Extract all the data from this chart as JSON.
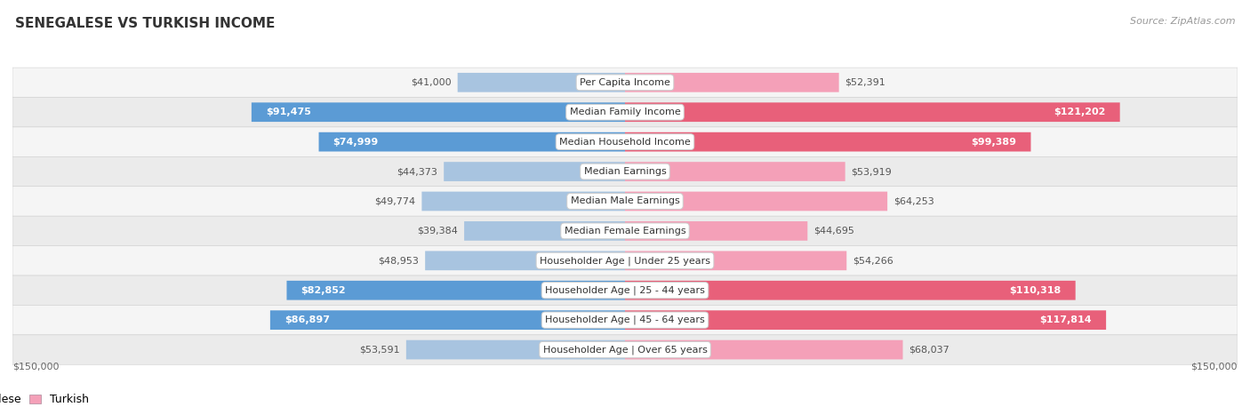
{
  "title": "SENEGALESE VS TURKISH INCOME",
  "source": "Source: ZipAtlas.com",
  "max_val": 150000,
  "categories": [
    "Per Capita Income",
    "Median Family Income",
    "Median Household Income",
    "Median Earnings",
    "Median Male Earnings",
    "Median Female Earnings",
    "Householder Age | Under 25 years",
    "Householder Age | 25 - 44 years",
    "Householder Age | 45 - 64 years",
    "Householder Age | Over 65 years"
  ],
  "senegalese": [
    41000,
    91475,
    74999,
    44373,
    49774,
    39384,
    48953,
    82852,
    86897,
    53591
  ],
  "turkish": [
    52391,
    121202,
    99389,
    53919,
    64253,
    44695,
    54266,
    110318,
    117814,
    68037
  ],
  "senegalese_labels": [
    "$41,000",
    "$91,475",
    "$74,999",
    "$44,373",
    "$49,774",
    "$39,384",
    "$48,953",
    "$82,852",
    "$86,897",
    "$53,591"
  ],
  "turkish_labels": [
    "$52,391",
    "$121,202",
    "$99,389",
    "$53,919",
    "$64,253",
    "$44,695",
    "$54,266",
    "$110,318",
    "$117,814",
    "$68,037"
  ],
  "color_senegalese_light": "#a8c4e0",
  "color_senegalese_dark": "#5b9bd5",
  "color_turkish_light": "#f4a0b8",
  "color_turkish_dark": "#e8607a",
  "row_bg_even": "#f5f5f5",
  "row_bg_odd": "#ebebeb",
  "title_fontsize": 11,
  "source_fontsize": 8,
  "bar_fontsize": 8,
  "cat_fontsize": 8,
  "axis_fontsize": 8,
  "legend_fontsize": 9,
  "s_large_thresh": 70000,
  "t_large_thresh": 95000
}
